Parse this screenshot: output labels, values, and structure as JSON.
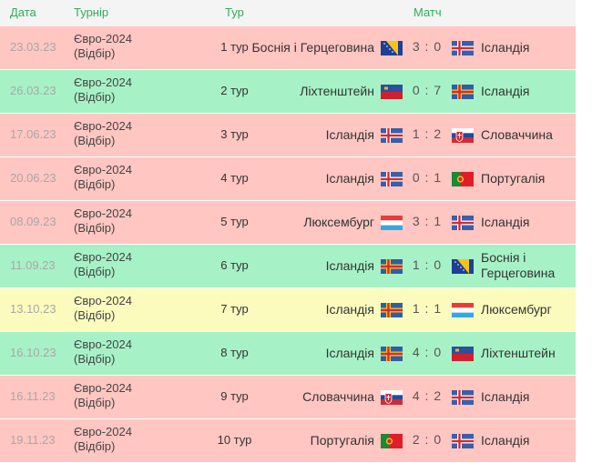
{
  "headers": {
    "date": "Дата",
    "tournament": "Турнір",
    "round": "Тур",
    "match": "Матч"
  },
  "colors": {
    "loss": "#ffc6c2",
    "win": "#a6f2c6",
    "draw": "#fbfbbe",
    "header_text": "#2fae5a"
  },
  "matches": [
    {
      "date": "23.03.23",
      "tournament": [
        "Євро-2024",
        "(Відбір)"
      ],
      "round": "1 тур",
      "home": "Боснія і Герцеговина",
      "home_flag": "bosnia-flag-icon",
      "score": "3 : 0",
      "away": "Ісландія",
      "away_flag": "iceland-flag-icon",
      "result": "loss"
    },
    {
      "date": "26.03.23",
      "tournament": [
        "Євро-2024",
        "(Відбір)"
      ],
      "round": "2 тур",
      "home": "Ліхтенштейн",
      "home_flag": "liechtenstein-flag-icon",
      "score": "0 : 7",
      "away": "Ісландія",
      "away_flag": "aland-flag-icon",
      "result": "win"
    },
    {
      "date": "17.06.23",
      "tournament": [
        "Євро-2024",
        "(Відбір)"
      ],
      "round": "3 тур",
      "home": "Ісландія",
      "home_flag": "iceland-flag-icon",
      "score": "1 : 2",
      "away": "Словаччина",
      "away_flag": "slovakia-flag-icon",
      "result": "loss"
    },
    {
      "date": "20.06.23",
      "tournament": [
        "Євро-2024",
        "(Відбір)"
      ],
      "round": "4 тур",
      "home": "Ісландія",
      "home_flag": "iceland-flag-icon",
      "score": "0 : 1",
      "away": "Португалія",
      "away_flag": "portugal-flag-icon",
      "result": "loss"
    },
    {
      "date": "08.09.23",
      "tournament": [
        "Євро-2024",
        "(Відбір)"
      ],
      "round": "5 тур",
      "home": "Люксембург",
      "home_flag": "luxembourg-flag-icon",
      "score": "3 : 1",
      "away": "Ісландія",
      "away_flag": "iceland-flag-icon",
      "result": "loss"
    },
    {
      "date": "11.09.23",
      "tournament": [
        "Євро-2024",
        "(Відбір)"
      ],
      "round": "6 тур",
      "home": "Ісландія",
      "home_flag": "aland-flag-icon",
      "score": "1 : 0",
      "away": "Боснія і Герцеговина",
      "away_flag": "bosnia-flag-icon",
      "result": "win"
    },
    {
      "date": "13.10.23",
      "tournament": [
        "Євро-2024",
        "(Відбір)"
      ],
      "round": "7 тур",
      "home": "Ісландія",
      "home_flag": "aland-flag-icon",
      "score": "1 : 1",
      "away": "Люксембург",
      "away_flag": "luxembourg-flag-icon",
      "result": "draw"
    },
    {
      "date": "16.10.23",
      "tournament": [
        "Євро-2024",
        "(Відбір)"
      ],
      "round": "8 тур",
      "home": "Ісландія",
      "home_flag": "aland-flag-icon",
      "score": "4 : 0",
      "away": "Ліхтенштейн",
      "away_flag": "liechtenstein-flag-icon",
      "result": "win"
    },
    {
      "date": "16.11.23",
      "tournament": [
        "Євро-2024",
        "(Відбір)"
      ],
      "round": "9 тур",
      "home": "Словаччина",
      "home_flag": "slovakia-flag-icon",
      "score": "4 : 2",
      "away": "Ісландія",
      "away_flag": "iceland-flag-icon",
      "result": "loss"
    },
    {
      "date": "19.11.23",
      "tournament": [
        "Євро-2024",
        "(Відбір)"
      ],
      "round": "10 тур",
      "home": "Португалія",
      "home_flag": "portugal-flag-icon",
      "score": "2 : 0",
      "away": "Ісландія",
      "away_flag": "iceland-flag-icon",
      "result": "loss"
    }
  ]
}
